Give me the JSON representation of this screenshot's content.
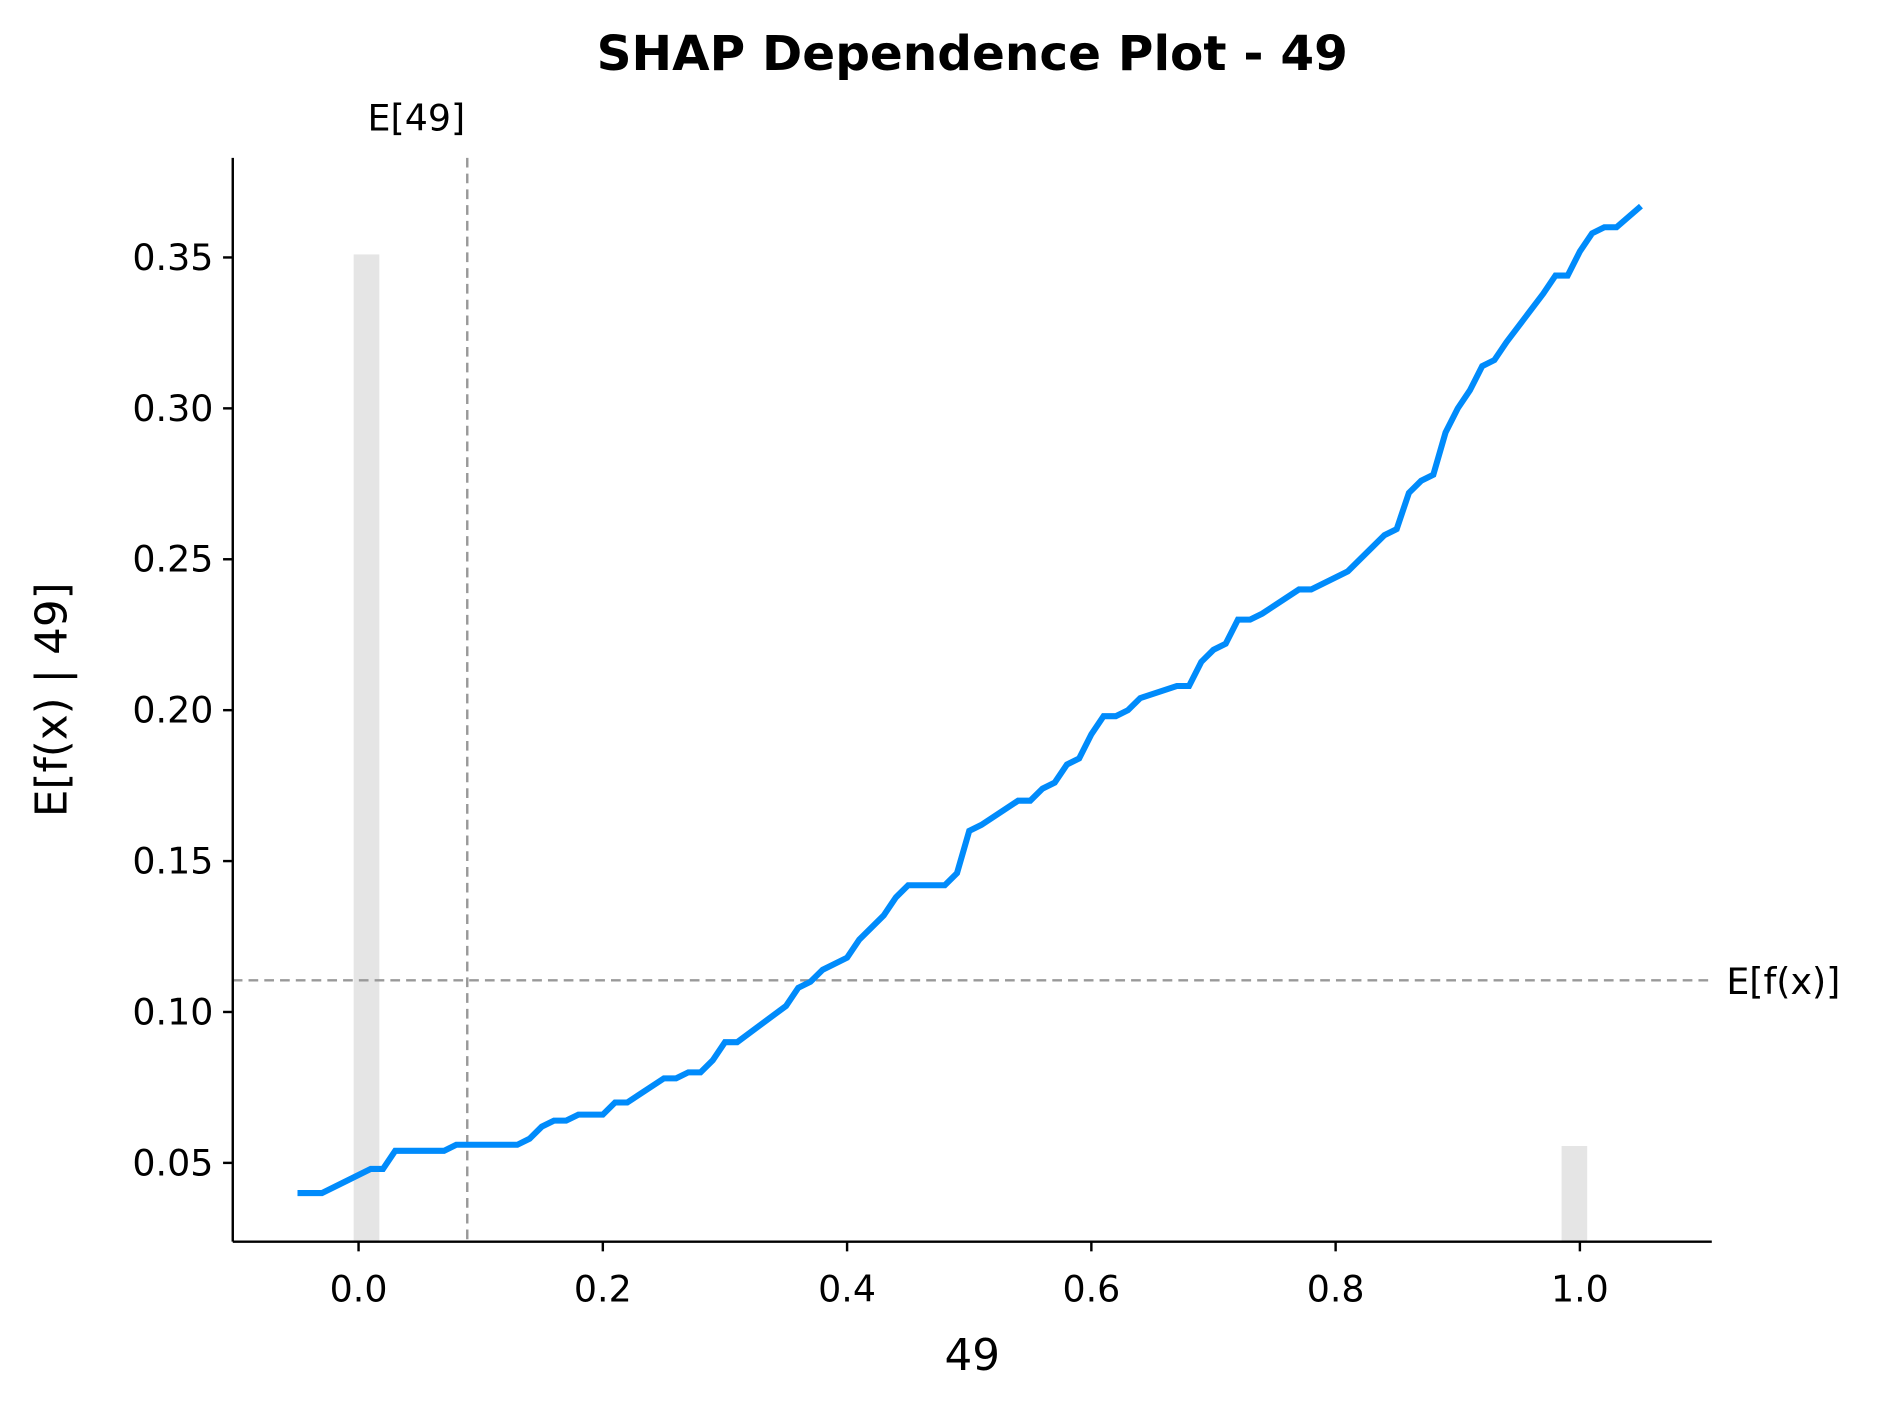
{
  "chart_data": {
    "type": "line",
    "title": "SHAP Dependence Plot - 49",
    "xlabel": "49",
    "ylabel": "E[f(x) | 49]",
    "x": [
      -0.05,
      -0.03,
      -0.01,
      0.01,
      0.02,
      0.03,
      0.07,
      0.08,
      0.13,
      0.14,
      0.15,
      0.16,
      0.17,
      0.18,
      0.2,
      0.21,
      0.22,
      0.25,
      0.26,
      0.27,
      0.28,
      0.29,
      0.3,
      0.31,
      0.35,
      0.36,
      0.37,
      0.38,
      0.4,
      0.41,
      0.43,
      0.44,
      0.45,
      0.48,
      0.49,
      0.5,
      0.51,
      0.54,
      0.55,
      0.56,
      0.57,
      0.58,
      0.59,
      0.6,
      0.61,
      0.62,
      0.63,
      0.64,
      0.67,
      0.68,
      0.69,
      0.7,
      0.71,
      0.72,
      0.73,
      0.74,
      0.77,
      0.78,
      0.81,
      0.83,
      0.84,
      0.85,
      0.86,
      0.87,
      0.88,
      0.89,
      0.9,
      0.91,
      0.92,
      0.93,
      0.94,
      0.97,
      0.98,
      0.99,
      1.0,
      1.01,
      1.02,
      1.03,
      1.05
    ],
    "series": [
      {
        "color": "#008bfb",
        "values": [
          0.04,
          0.04,
          0.044,
          0.048,
          0.048,
          0.054,
          0.054,
          0.056,
          0.056,
          0.058,
          0.062,
          0.064,
          0.064,
          0.066,
          0.066,
          0.07,
          0.07,
          0.078,
          0.078,
          0.08,
          0.08,
          0.084,
          0.09,
          0.09,
          0.102,
          0.108,
          0.11,
          0.114,
          0.118,
          0.124,
          0.132,
          0.138,
          0.142,
          0.142,
          0.146,
          0.16,
          0.162,
          0.17,
          0.17,
          0.174,
          0.176,
          0.182,
          0.184,
          0.192,
          0.198,
          0.198,
          0.2,
          0.204,
          0.208,
          0.208,
          0.216,
          0.22,
          0.222,
          0.23,
          0.23,
          0.232,
          0.24,
          0.24,
          0.246,
          0.254,
          0.258,
          0.26,
          0.272,
          0.276,
          0.278,
          0.292,
          0.3,
          0.306,
          0.314,
          0.316,
          0.322,
          0.338,
          0.344,
          0.344,
          0.352,
          0.358,
          0.36,
          0.36,
          0.367
        ]
      }
    ],
    "histogram": {
      "color": "#e5e5e5",
      "bars": [
        {
          "x0": -0.004,
          "x1": 0.017,
          "top": 0.351
        },
        {
          "x0": 0.985,
          "x1": 1.006,
          "top": 0.0556
        }
      ]
    },
    "reference_lines": {
      "color": "#999999",
      "expected_value": {
        "label": "E[f(x)]",
        "value": 0.1105
      },
      "feature_mean": {
        "label": "E[49]",
        "value": 0.089
      }
    },
    "xlim": [
      -0.103,
      1.108
    ],
    "ylim": [
      0.0239,
      0.383
    ],
    "xticks": [
      {
        "value": 0,
        "label": "0.0"
      },
      {
        "value": 0.2,
        "label": "0.2"
      },
      {
        "value": 0.4,
        "label": "0.4"
      },
      {
        "value": 0.6,
        "label": "0.6"
      },
      {
        "value": 0.8,
        "label": "0.8"
      },
      {
        "value": 1,
        "label": "1.0"
      }
    ],
    "yticks": [
      0.05,
      {
        "value": 0.1,
        "label": "0.10"
      },
      0.15,
      {
        "value": 0.2,
        "label": "0.20"
      },
      0.25,
      {
        "value": 0.3,
        "label": "0.30"
      },
      0.35
    ]
  }
}
